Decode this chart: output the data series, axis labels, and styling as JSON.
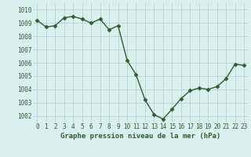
{
  "hours": [
    0,
    1,
    2,
    3,
    4,
    5,
    6,
    7,
    8,
    9,
    10,
    11,
    12,
    13,
    14,
    15,
    16,
    17,
    18,
    19,
    20,
    21,
    22,
    23
  ],
  "pressure": [
    1009.2,
    1008.7,
    1008.8,
    1009.4,
    1009.5,
    1009.3,
    1009.0,
    1009.3,
    1008.5,
    1008.8,
    1006.2,
    1005.1,
    1003.2,
    1002.1,
    1001.75,
    1002.5,
    1003.3,
    1003.9,
    1004.1,
    1004.0,
    1004.2,
    1004.8,
    1005.9,
    1005.8
  ],
  "line_color": "#2d5e2d",
  "marker": "D",
  "marker_size": 2.5,
  "bg_color": "#d9f0ef",
  "grid_color": "#aecece",
  "xlabel": "Graphe pression niveau de la mer (hPa)",
  "xlabel_fontsize": 6.5,
  "tick_fontsize": 5.5,
  "ylim": [
    1001.5,
    1010.5
  ],
  "yticks": [
    1002,
    1003,
    1004,
    1005,
    1006,
    1007,
    1008,
    1009,
    1010
  ],
  "line_width": 1.0
}
